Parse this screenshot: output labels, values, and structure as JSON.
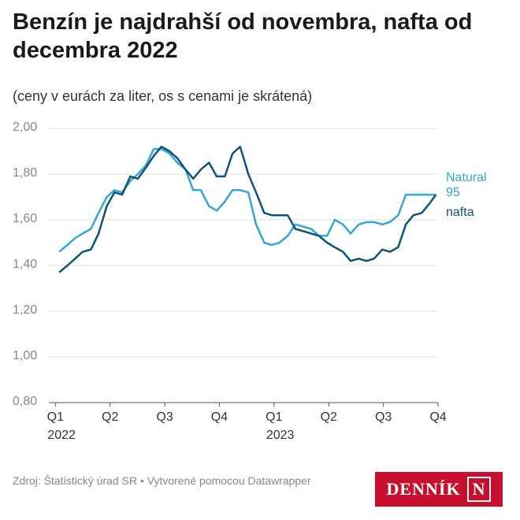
{
  "chart_data": {
    "type": "line",
    "title": "Benzín je najdrahší od novembra, nafta od decembra 2022",
    "subtitle": "(ceny v eurách za liter, os s cenami je skrátená)",
    "source": "Zdroj: Štatistický úrad SR • Vytvorené pomocou Datawrapper",
    "logo": [
      "DENNÍK",
      "N"
    ],
    "x": [
      0.07,
      0.22,
      0.36,
      0.5,
      0.65,
      0.79,
      0.94,
      1.08,
      1.22,
      1.37,
      1.51,
      1.66,
      1.8,
      1.94,
      2.09,
      2.23,
      2.38,
      2.52,
      2.66,
      2.81,
      2.95,
      3.1,
      3.24,
      3.38,
      3.53,
      3.67,
      3.82,
      3.96,
      4.1,
      4.25,
      4.39,
      4.54,
      4.68,
      4.82,
      4.97,
      5.11,
      5.26,
      5.4,
      5.55,
      5.69,
      5.83,
      5.98,
      6.12,
      6.27,
      6.41,
      6.55,
      6.7,
      6.84,
      6.96
    ],
    "series": [
      {
        "name": "Natural 95",
        "color": "#34a6cf",
        "values": [
          1.46,
          1.49,
          1.52,
          1.54,
          1.56,
          1.63,
          1.7,
          1.73,
          1.72,
          1.77,
          1.8,
          1.84,
          1.91,
          1.91,
          1.89,
          1.85,
          1.82,
          1.73,
          1.73,
          1.66,
          1.64,
          1.68,
          1.73,
          1.73,
          1.72,
          1.58,
          1.5,
          1.49,
          1.5,
          1.53,
          1.58,
          1.57,
          1.56,
          1.53,
          1.53,
          1.6,
          1.58,
          1.54,
          1.58,
          1.59,
          1.59,
          1.58,
          1.59,
          1.62,
          1.71,
          1.71,
          1.71,
          1.71,
          1.71
        ]
      },
      {
        "name": "nafta",
        "color": "#0f5376",
        "values": [
          1.37,
          1.4,
          1.43,
          1.46,
          1.47,
          1.54,
          1.66,
          1.72,
          1.71,
          1.79,
          1.78,
          1.83,
          1.88,
          1.92,
          1.9,
          1.87,
          1.82,
          1.78,
          1.82,
          1.85,
          1.79,
          1.79,
          1.89,
          1.92,
          1.8,
          1.72,
          1.63,
          1.62,
          1.62,
          1.62,
          1.56,
          1.55,
          1.54,
          1.53,
          1.5,
          1.48,
          1.46,
          1.42,
          1.43,
          1.42,
          1.43,
          1.47,
          1.46,
          1.48,
          1.58,
          1.62,
          1.63,
          1.67,
          1.71
        ]
      }
    ],
    "xlim": [
      -0.12,
      7
    ],
    "xticks": [
      {
        "value": 0,
        "label": "Q1"
      },
      {
        "value": 1,
        "label": "Q2"
      },
      {
        "value": 2,
        "label": "Q3"
      },
      {
        "value": 3,
        "label": "Q4"
      },
      {
        "value": 4,
        "label": "Q1"
      },
      {
        "value": 5,
        "label": "Q2"
      },
      {
        "value": 6,
        "label": "Q3"
      },
      {
        "value": 7,
        "label": "Q4"
      }
    ],
    "x_year_labels": [
      {
        "value": 0,
        "label": "2022"
      },
      {
        "value": 4,
        "label": "2023"
      }
    ],
    "ylim": [
      0.8,
      2.0
    ],
    "yticks": [
      {
        "value": 0.8,
        "label": "0,80"
      },
      {
        "value": 1.0,
        "label": "1,00"
      },
      {
        "value": 1.2,
        "label": "1,20"
      },
      {
        "value": 1.4,
        "label": "1,40"
      },
      {
        "value": 1.6,
        "label": "1,60"
      },
      {
        "value": 1.8,
        "label": "1,80"
      },
      {
        "value": 2.0,
        "label": "2,00"
      }
    ],
    "grid": true
  }
}
